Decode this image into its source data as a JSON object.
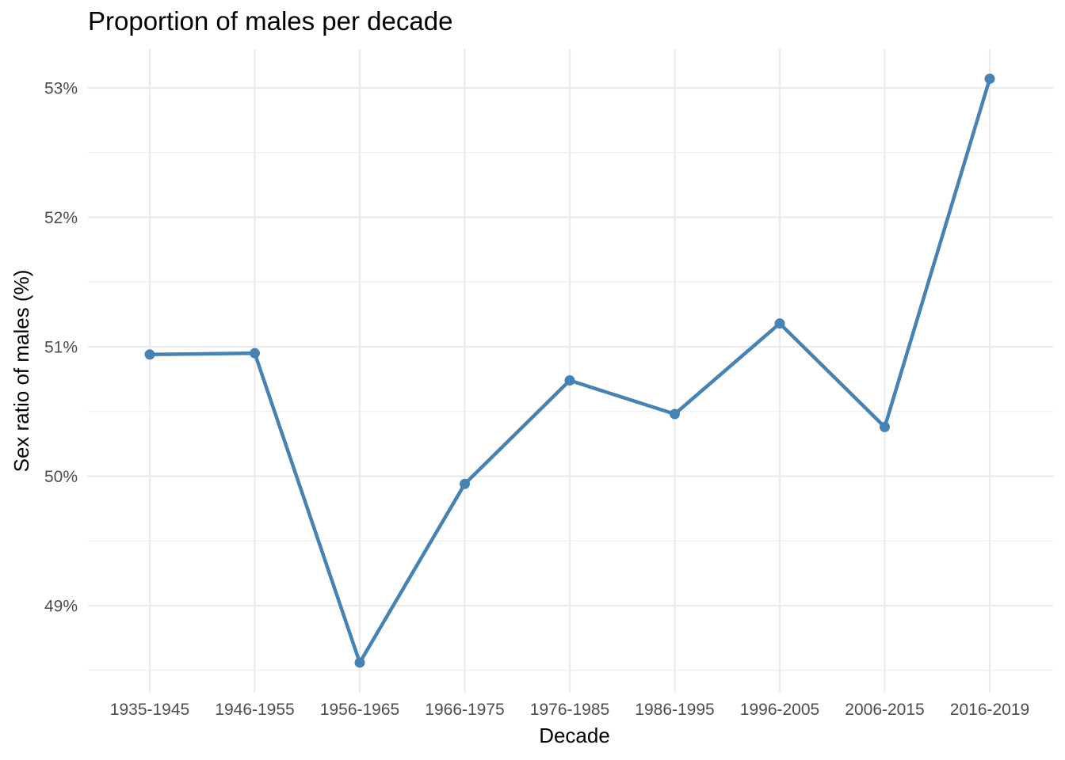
{
  "chart_data": {
    "type": "line",
    "title": "Proportion of males per decade",
    "xlabel": "Decade",
    "ylabel": "Sex ratio of males (%)",
    "categories": [
      "1935-1945",
      "1946-1955",
      "1956-1965",
      "1966-1975",
      "1976-1985",
      "1986-1995",
      "1996-2005",
      "2006-2015",
      "2016-2019"
    ],
    "series": [
      {
        "values": [
          50.94,
          50.95,
          48.56,
          49.94,
          50.74,
          50.48,
          51.18,
          50.38,
          53.07
        ]
      }
    ],
    "y_ticks": [
      49,
      50,
      51,
      52,
      53
    ],
    "y_tick_labels": [
      "49%",
      "50%",
      "51%",
      "52%",
      "53%"
    ],
    "ylim": [
      48.5,
      53.3
    ],
    "grid": true,
    "legend": "none",
    "colors": {
      "line": "#4682b4",
      "grid": "#ebebeb",
      "tick_text": "#4d4d4d",
      "background": "#ffffff"
    }
  }
}
